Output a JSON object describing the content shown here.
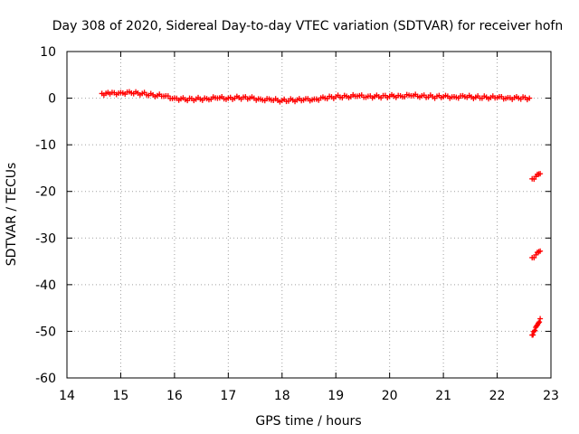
{
  "chart_data": {
    "type": "scatter",
    "title": "Day 308 of 2020, Sidereal Day-to-day VTEC variation (SDTVAR) for receiver hofn",
    "xlabel": "GPS time / hours",
    "ylabel": "SDTVAR / TECUs",
    "xlim": [
      14,
      23
    ],
    "ylim": [
      -60,
      10
    ],
    "xticks": [
      14,
      15,
      16,
      17,
      18,
      19,
      20,
      21,
      22,
      23
    ],
    "yticks": [
      -60,
      -50,
      -40,
      -30,
      -20,
      -10,
      0,
      10
    ],
    "grid": true,
    "marker": "+",
    "colors": {
      "series": "#ff0000",
      "grid": "#a0a0a0",
      "axes": "#000000"
    },
    "series": [
      {
        "name": "main",
        "x": [
          14.65,
          14.8,
          15.0,
          15.2,
          15.4,
          15.6,
          15.8,
          16.0,
          16.2,
          16.4,
          16.6,
          16.8,
          17.0,
          17.2,
          17.4,
          17.6,
          17.8,
          18.0,
          18.2,
          18.4,
          18.6,
          18.8,
          19.0,
          19.2,
          19.4,
          19.6,
          19.8,
          20.0,
          20.2,
          20.4,
          20.6,
          20.8,
          21.0,
          21.2,
          21.4,
          21.6,
          21.8,
          22.0,
          22.2,
          22.4,
          22.6
        ],
        "y": [
          1.0,
          0.9,
          1.2,
          1.1,
          1.0,
          0.7,
          0.4,
          0.0,
          -0.3,
          -0.2,
          -0.1,
          0.0,
          0.0,
          0.1,
          0.0,
          -0.2,
          -0.4,
          -0.5,
          -0.4,
          -0.4,
          -0.2,
          0.0,
          0.3,
          0.4,
          0.4,
          0.4,
          0.3,
          0.4,
          0.5,
          0.5,
          0.5,
          0.3,
          0.3,
          0.3,
          0.3,
          0.2,
          0.2,
          0.1,
          0.1,
          0.0,
          0.0
        ]
      },
      {
        "name": "segment-1",
        "x": [
          22.65,
          22.72,
          22.8
        ],
        "y": [
          -17.3,
          -16.8,
          -16.2
        ]
      },
      {
        "name": "segment-2",
        "x": [
          22.65,
          22.72,
          22.8
        ],
        "y": [
          -34.2,
          -33.6,
          -32.8
        ]
      },
      {
        "name": "segment-3",
        "x": [
          22.65,
          22.7,
          22.75,
          22.8
        ],
        "y": [
          -50.8,
          -49.8,
          -48.6,
          -47.3
        ]
      }
    ]
  }
}
